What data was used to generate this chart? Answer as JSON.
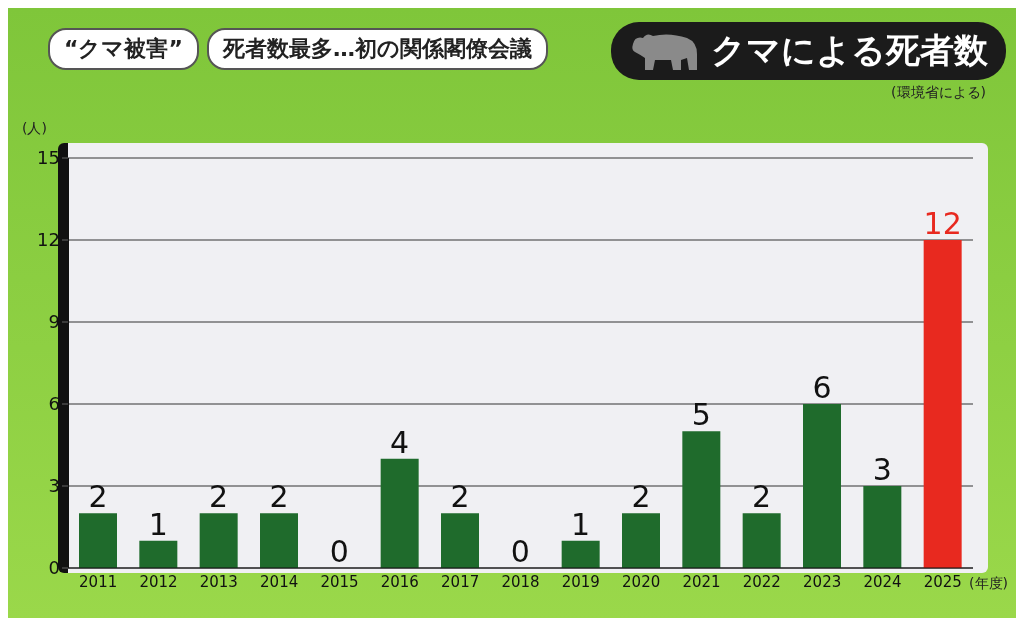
{
  "chart_data": {
    "type": "bar",
    "title": "クマによる死者数",
    "subtitle": "(環境省による)",
    "annotations": [
      "“クマ被害”",
      "死者数最多…初の関係閣僚会議"
    ],
    "ylabel": "(人)",
    "xlabel": "(年度)",
    "categories": [
      "2011",
      "2012",
      "2013",
      "2014",
      "2015",
      "2016",
      "2017",
      "2018",
      "2019",
      "2020",
      "2021",
      "2022",
      "2023",
      "2024",
      "2025"
    ],
    "values": [
      2,
      1,
      2,
      2,
      0,
      4,
      2,
      0,
      1,
      2,
      5,
      2,
      6,
      3,
      12
    ],
    "colors": [
      "#1f6b2c",
      "#1f6b2c",
      "#1f6b2c",
      "#1f6b2c",
      "#1f6b2c",
      "#1f6b2c",
      "#1f6b2c",
      "#1f6b2c",
      "#1f6b2c",
      "#1f6b2c",
      "#1f6b2c",
      "#1f6b2c",
      "#1f6b2c",
      "#1f6b2c",
      "#e8291f"
    ],
    "ylim": [
      0,
      15
    ],
    "yticks": [
      0,
      3,
      6,
      9,
      12,
      15
    ],
    "grid": "y",
    "data_labels": true
  }
}
